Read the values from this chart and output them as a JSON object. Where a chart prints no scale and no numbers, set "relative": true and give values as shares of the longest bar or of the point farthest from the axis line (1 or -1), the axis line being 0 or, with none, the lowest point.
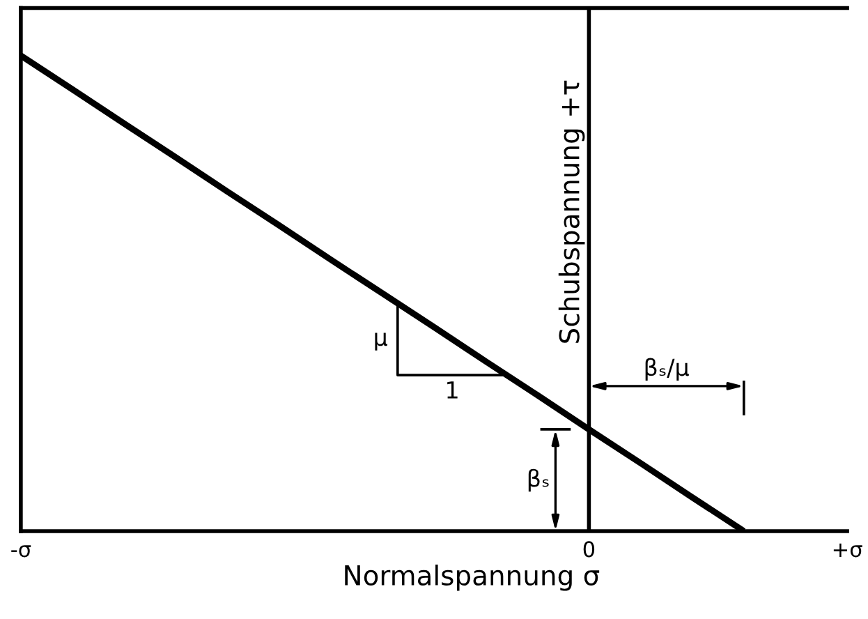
{
  "chart_data": {
    "type": "line",
    "xlabel": "Normalspannung σ",
    "ylabel": "Schubspannung +τ",
    "categories": [
      "-σ",
      null,
      null,
      null,
      null,
      null,
      null,
      null,
      null,
      null,
      null,
      "0",
      null,
      null,
      null,
      null,
      "+σ"
    ],
    "values": [
      1,
      0.929,
      0.857,
      0.786,
      0.714,
      0.643,
      0.571,
      0.5,
      0.429,
      0.357,
      0.286,
      0.214,
      0.143,
      0.071,
      0,
      null,
      null
    ],
    "color": "#000000",
    "relative": true,
    "ref_lines": [
      {
        "axis": "x",
        "value": "0",
        "color": "#000000"
      }
    ],
    "annotations": [
      "μ",
      "1",
      "βₛ",
      "βₛ/μ"
    ]
  }
}
